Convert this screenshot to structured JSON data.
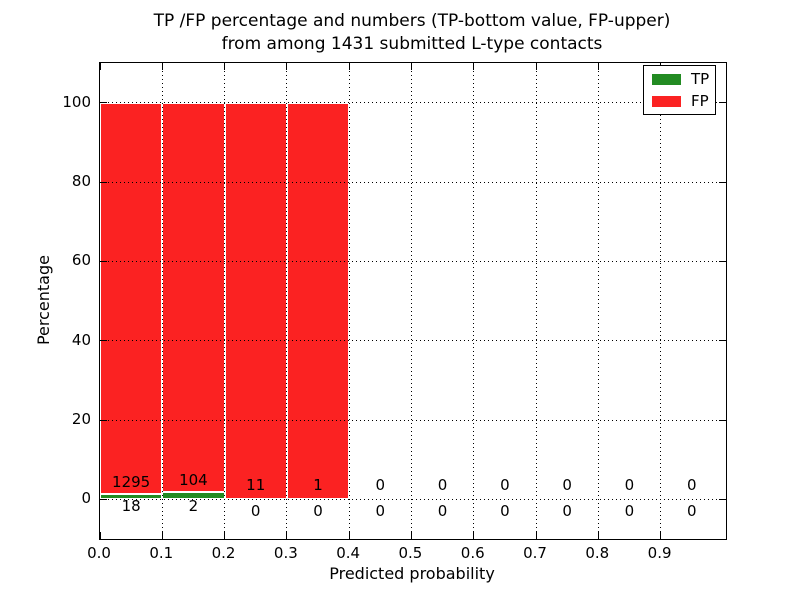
{
  "title": {
    "line1": "TP /FP percentage and numbers (TP-bottom value, FP-upper)",
    "line2": "from among 1431 submitted L-type contacts"
  },
  "chart_data": {
    "type": "bar",
    "stacked": true,
    "title": "TP /FP percentage and numbers (TP-bottom value, FP-upper) from among 1431 submitted L-type contacts",
    "xlabel": "Predicted probability",
    "ylabel": "Percentage",
    "total_submitted_contacts": 1431,
    "bin_edges": [
      0.0,
      0.1,
      0.2,
      0.3,
      0.4,
      0.5,
      0.6,
      0.7,
      0.8,
      0.9,
      1.0
    ],
    "x_tick_labels": [
      "0.0",
      "0.1",
      "0.2",
      "0.3",
      "0.4",
      "0.5",
      "0.6",
      "0.7",
      "0.8",
      "0.9"
    ],
    "x_tick_values": [
      0.0,
      0.1,
      0.2,
      0.3,
      0.4,
      0.5,
      0.6,
      0.7,
      0.8,
      0.9
    ],
    "y_tick_values": [
      0,
      20,
      40,
      60,
      80,
      100
    ],
    "xlim": [
      0,
      1.005
    ],
    "ylim": [
      -10,
      110
    ],
    "grid": {
      "style": "dotted",
      "color": "#000000",
      "above_bars": true
    },
    "series": [
      {
        "name": "TP",
        "color": "#228b22",
        "counts": [
          18,
          2,
          0,
          0,
          0,
          0,
          0,
          0,
          0,
          0
        ],
        "percents": [
          1.371,
          1.887,
          0,
          0,
          0,
          0,
          0,
          0,
          0,
          0
        ]
      },
      {
        "name": "FP",
        "color": "#fb2222",
        "counts": [
          1295,
          104,
          11,
          1,
          0,
          0,
          0,
          0,
          0,
          0
        ],
        "percents": [
          98.629,
          98.113,
          100,
          100,
          0,
          0,
          0,
          0,
          0,
          0
        ]
      }
    ],
    "legend": {
      "position": "upper-right",
      "entries": [
        {
          "label": "TP",
          "color": "#228b22"
        },
        {
          "label": "FP",
          "color": "#fb2222"
        }
      ]
    }
  }
}
